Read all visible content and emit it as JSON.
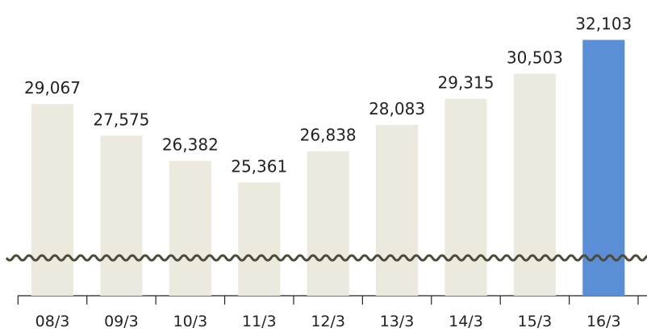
{
  "chart_data": {
    "type": "bar",
    "categories": [
      "08/3",
      "09/3",
      "10/3",
      "11/3",
      "12/3",
      "13/3",
      "14/3",
      "15/3",
      "16/3"
    ],
    "values": [
      29067,
      27575,
      26382,
      25361,
      26838,
      28083,
      29315,
      30503,
      32103
    ],
    "value_labels": [
      "29,067",
      "27,575",
      "26,382",
      "25,361",
      "26,838",
      "28,083",
      "29,315",
      "30,503",
      "32,103"
    ],
    "colors": [
      "#ece9df",
      "#ece9df",
      "#ece9df",
      "#ece9df",
      "#ece9df",
      "#ece9df",
      "#ece9df",
      "#ece9df",
      "#5a8fd6"
    ],
    "ylim": [
      20000,
      33000
    ]
  }
}
